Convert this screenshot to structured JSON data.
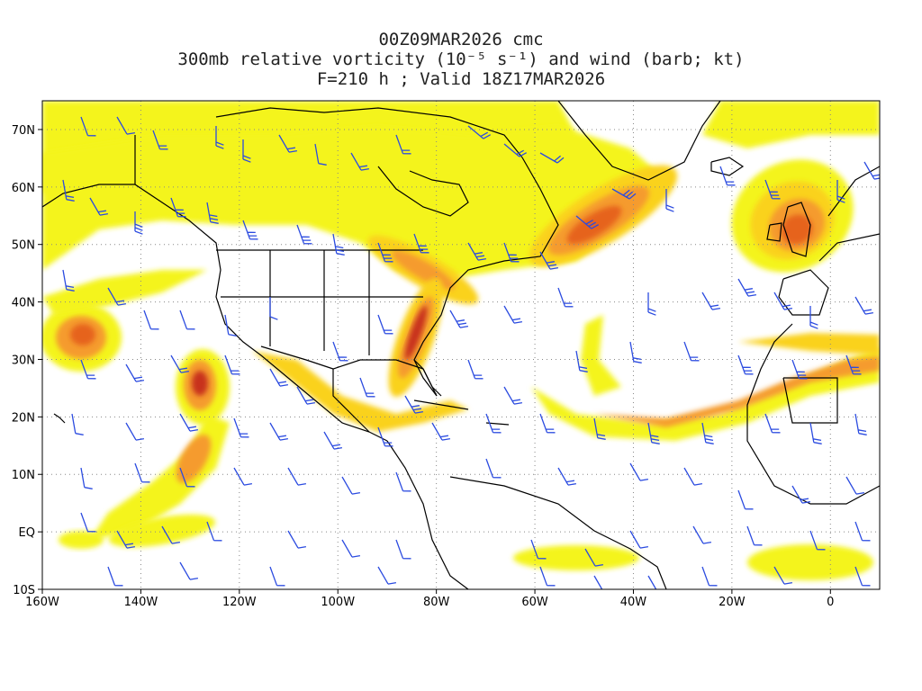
{
  "title": {
    "line1": "00Z09MAR2026 cmc",
    "line2": "300mb relative vorticity (10⁻⁵ s⁻¹) and wind (barb; kt)",
    "line3": "F=210 h ; Valid 18Z17MAR2026"
  },
  "map_data": {
    "projection": "cylindrical equidistant",
    "lon_range": [
      -160,
      10
    ],
    "lat_range": [
      -10,
      75
    ],
    "lon_ticks": [
      {
        "value": -160,
        "label": "160W"
      },
      {
        "value": -140,
        "label": "140W"
      },
      {
        "value": -120,
        "label": "120W"
      },
      {
        "value": -100,
        "label": "100W"
      },
      {
        "value": -80,
        "label": "80W"
      },
      {
        "value": -60,
        "label": "60W"
      },
      {
        "value": -40,
        "label": "40W"
      },
      {
        "value": -20,
        "label": "20W"
      },
      {
        "value": 0,
        "label": "0"
      }
    ],
    "lat_ticks": [
      {
        "value": 70,
        "label": "70N"
      },
      {
        "value": 60,
        "label": "60N"
      },
      {
        "value": 50,
        "label": "50N"
      },
      {
        "value": 40,
        "label": "40N"
      },
      {
        "value": 30,
        "label": "30N"
      },
      {
        "value": 20,
        "label": "20N"
      },
      {
        "value": 10,
        "label": "10N"
      },
      {
        "value": 0,
        "label": "EQ"
      },
      {
        "value": -10,
        "label": "10S"
      }
    ],
    "grid": true,
    "colors": {
      "shade_low": "#f4f41e",
      "shade_mid": "#fad21e",
      "shade_high": "#f59b2d",
      "shade_peak": "#e6641e",
      "shade_max": "#c8321e",
      "barb": "#2b4be0",
      "coastline": "#000000"
    },
    "vorticity_features": [
      {
        "name": "Canadian-Atlantic jet band",
        "lon": [
          -160,
          -30
        ],
        "lat": [
          35,
          72
        ]
      },
      {
        "name": "North Atlantic max",
        "center_lon": -47,
        "center_lat": 55,
        "level": "peak"
      },
      {
        "name": "Eastern US trough axis",
        "center_lon": -84,
        "center_lat": 34,
        "level": "max"
      },
      {
        "name": "British Isles max",
        "center_lon": -8,
        "center_lat": 52,
        "level": "peak"
      },
      {
        "name": "Eastern Pacific cut-off low",
        "center_lon": -127,
        "center_lat": 26,
        "level": "max"
      },
      {
        "name": "Central Pacific max",
        "center_lon": -152,
        "center_lat": 34,
        "level": "high"
      },
      {
        "name": "Subtropical Atlantic jet",
        "lon": [
          -65,
          10
        ],
        "lat": [
          18,
          33
        ]
      }
    ]
  }
}
